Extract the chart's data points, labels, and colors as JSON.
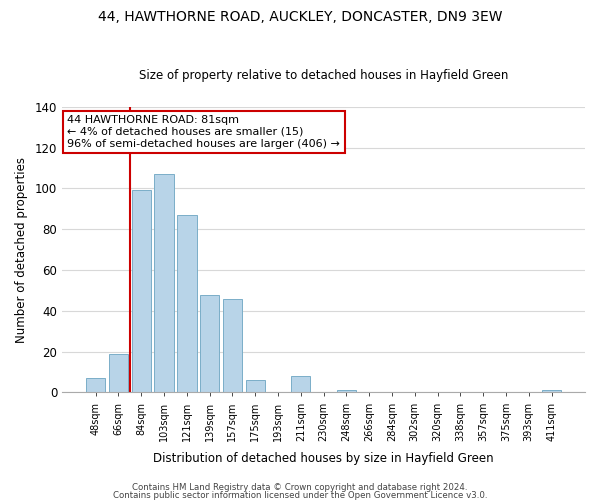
{
  "title": "44, HAWTHORNE ROAD, AUCKLEY, DONCASTER, DN9 3EW",
  "subtitle": "Size of property relative to detached houses in Hayfield Green",
  "xlabel": "Distribution of detached houses by size in Hayfield Green",
  "ylabel": "Number of detached properties",
  "bar_labels": [
    "48sqm",
    "66sqm",
    "84sqm",
    "103sqm",
    "121sqm",
    "139sqm",
    "157sqm",
    "175sqm",
    "193sqm",
    "211sqm",
    "230sqm",
    "248sqm",
    "266sqm",
    "284sqm",
    "302sqm",
    "320sqm",
    "338sqm",
    "357sqm",
    "375sqm",
    "393sqm",
    "411sqm"
  ],
  "bar_values": [
    7,
    19,
    99,
    107,
    87,
    48,
    46,
    6,
    0,
    8,
    0,
    1,
    0,
    0,
    0,
    0,
    0,
    0,
    0,
    0,
    1
  ],
  "bar_color": "#b8d4e8",
  "bar_edge_color": "#7aaec8",
  "reference_line_color": "#cc0000",
  "annotation_text": "44 HAWTHORNE ROAD: 81sqm\n← 4% of detached houses are smaller (15)\n96% of semi-detached houses are larger (406) →",
  "annotation_box_color": "#ffffff",
  "annotation_box_edge": "#cc0000",
  "ylim": [
    0,
    140
  ],
  "yticks": [
    0,
    20,
    40,
    60,
    80,
    100,
    120,
    140
  ],
  "footer1": "Contains HM Land Registry data © Crown copyright and database right 2024.",
  "footer2": "Contains public sector information licensed under the Open Government Licence v3.0.",
  "background_color": "#ffffff",
  "grid_color": "#d8d8d8"
}
